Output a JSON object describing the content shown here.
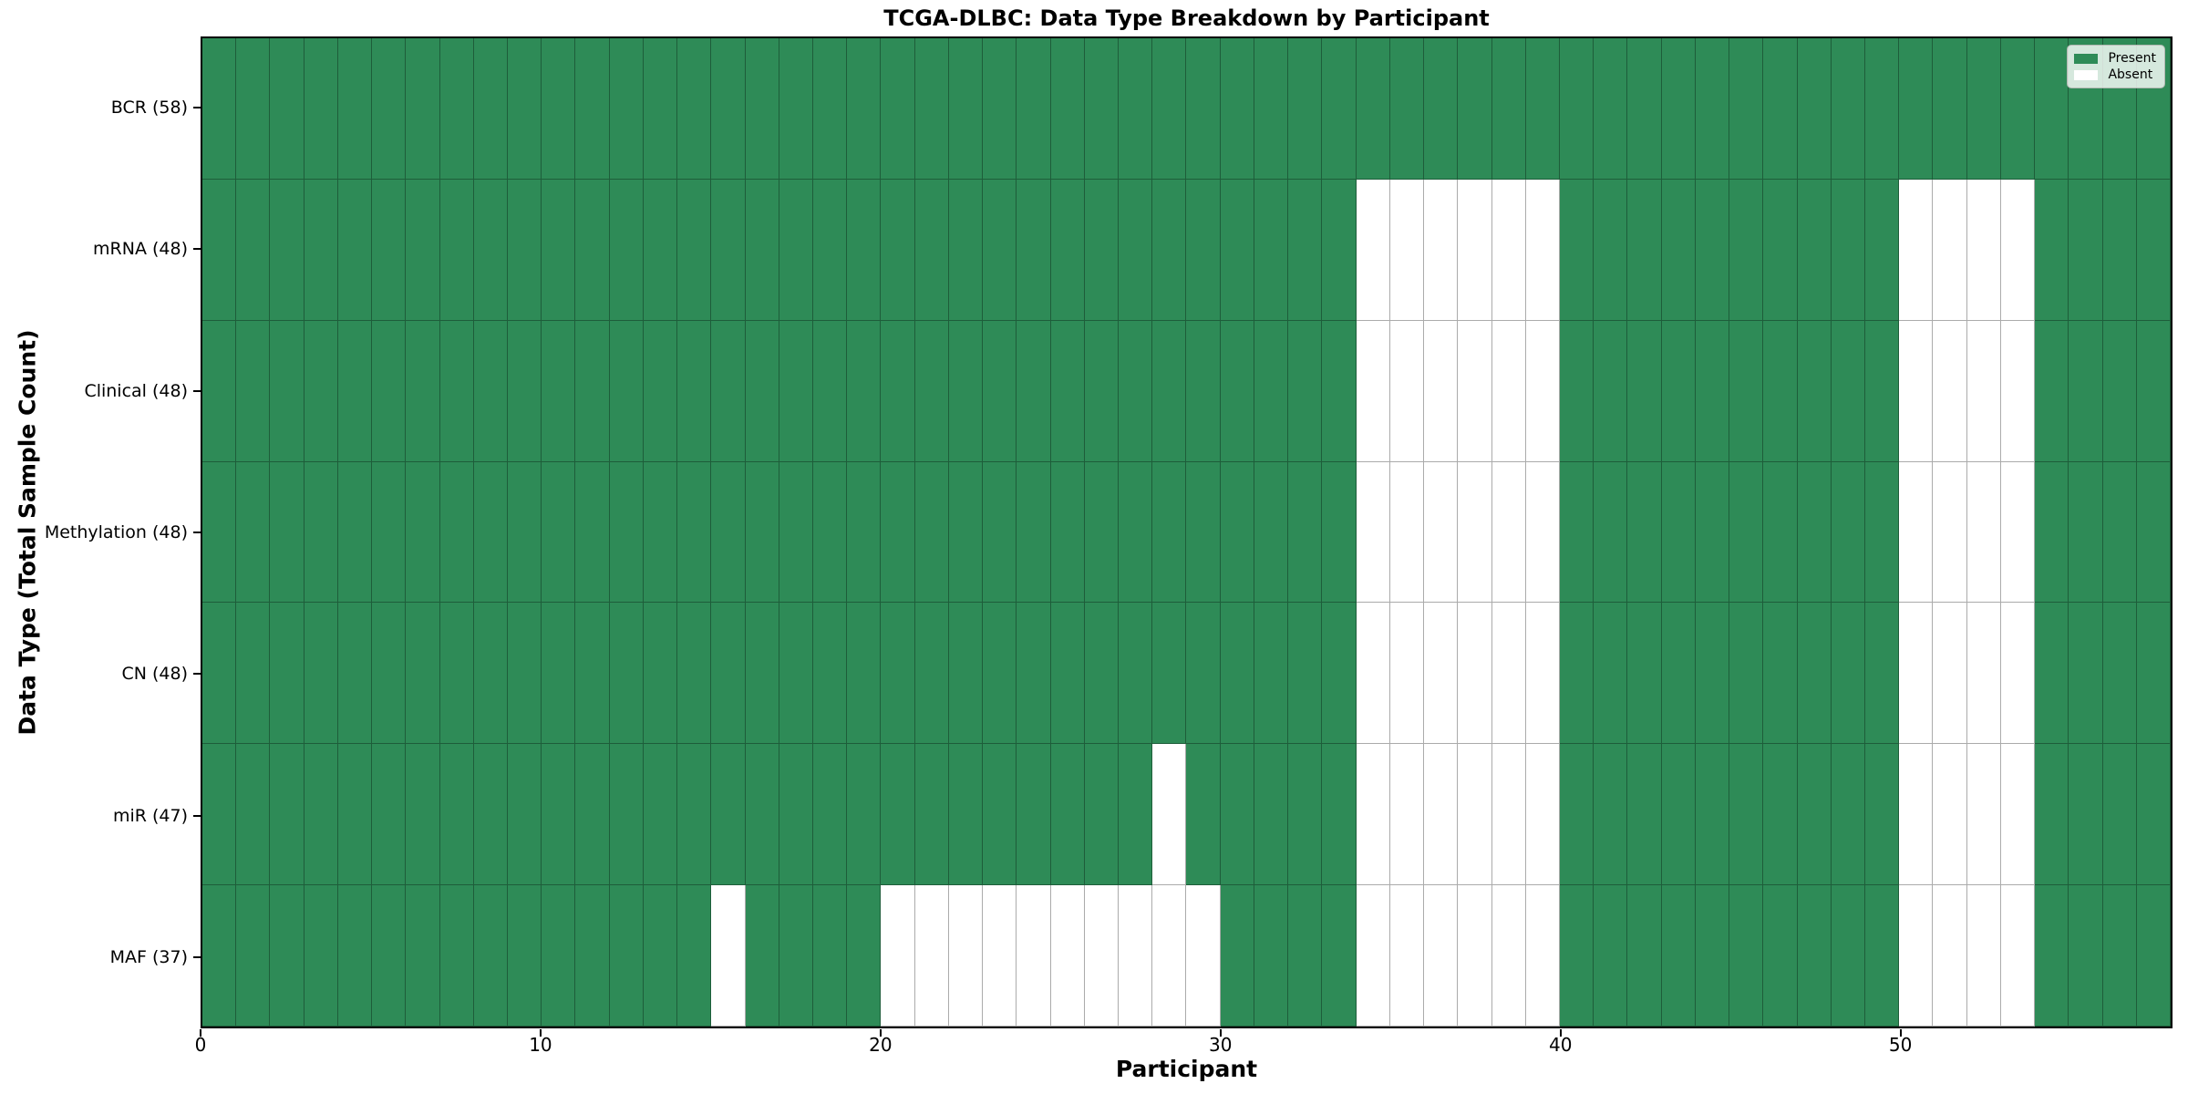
{
  "chart_data": {
    "type": "heatmap",
    "title": "TCGA-DLBC: Data Type Breakdown by Participant",
    "xlabel": "Participant",
    "ylabel": "Data Type (Total Sample Count)",
    "n_participants": 58,
    "x_range": [
      0,
      58
    ],
    "x_ticks": [
      0,
      10,
      20,
      30,
      40,
      50
    ],
    "grid": true,
    "legend_position": "upper right",
    "legend": [
      {
        "label": "Present",
        "color": "#2e8b57"
      },
      {
        "label": "Absent",
        "color": "#ffffff"
      }
    ],
    "colors": {
      "present": "#2e8b57",
      "absent": "#ffffff"
    },
    "rows": [
      {
        "label": "BCR (58)",
        "name": "BCR",
        "total": 58,
        "absent_participants": []
      },
      {
        "label": "mRNA (48)",
        "name": "mRNA",
        "total": 48,
        "absent_participants": [
          34,
          35,
          36,
          37,
          38,
          39,
          50,
          51,
          52,
          53
        ]
      },
      {
        "label": "Clinical (48)",
        "name": "Clinical",
        "total": 48,
        "absent_participants": [
          34,
          35,
          36,
          37,
          38,
          39,
          50,
          51,
          52,
          53
        ]
      },
      {
        "label": "Methylation (48)",
        "name": "Methylation",
        "total": 48,
        "absent_participants": [
          34,
          35,
          36,
          37,
          38,
          39,
          50,
          51,
          52,
          53
        ]
      },
      {
        "label": "CN (48)",
        "name": "CN",
        "total": 48,
        "absent_participants": [
          34,
          35,
          36,
          37,
          38,
          39,
          50,
          51,
          52,
          53
        ]
      },
      {
        "label": "miR (47)",
        "name": "miR",
        "total": 47,
        "absent_participants": [
          28,
          34,
          35,
          36,
          37,
          38,
          39,
          50,
          51,
          52,
          53
        ]
      },
      {
        "label": "MAF (37)",
        "name": "MAF",
        "total": 37,
        "absent_participants": [
          15,
          20,
          21,
          22,
          23,
          24,
          25,
          26,
          27,
          28,
          29,
          34,
          35,
          36,
          37,
          38,
          39,
          50,
          51,
          52,
          53
        ]
      }
    ]
  }
}
